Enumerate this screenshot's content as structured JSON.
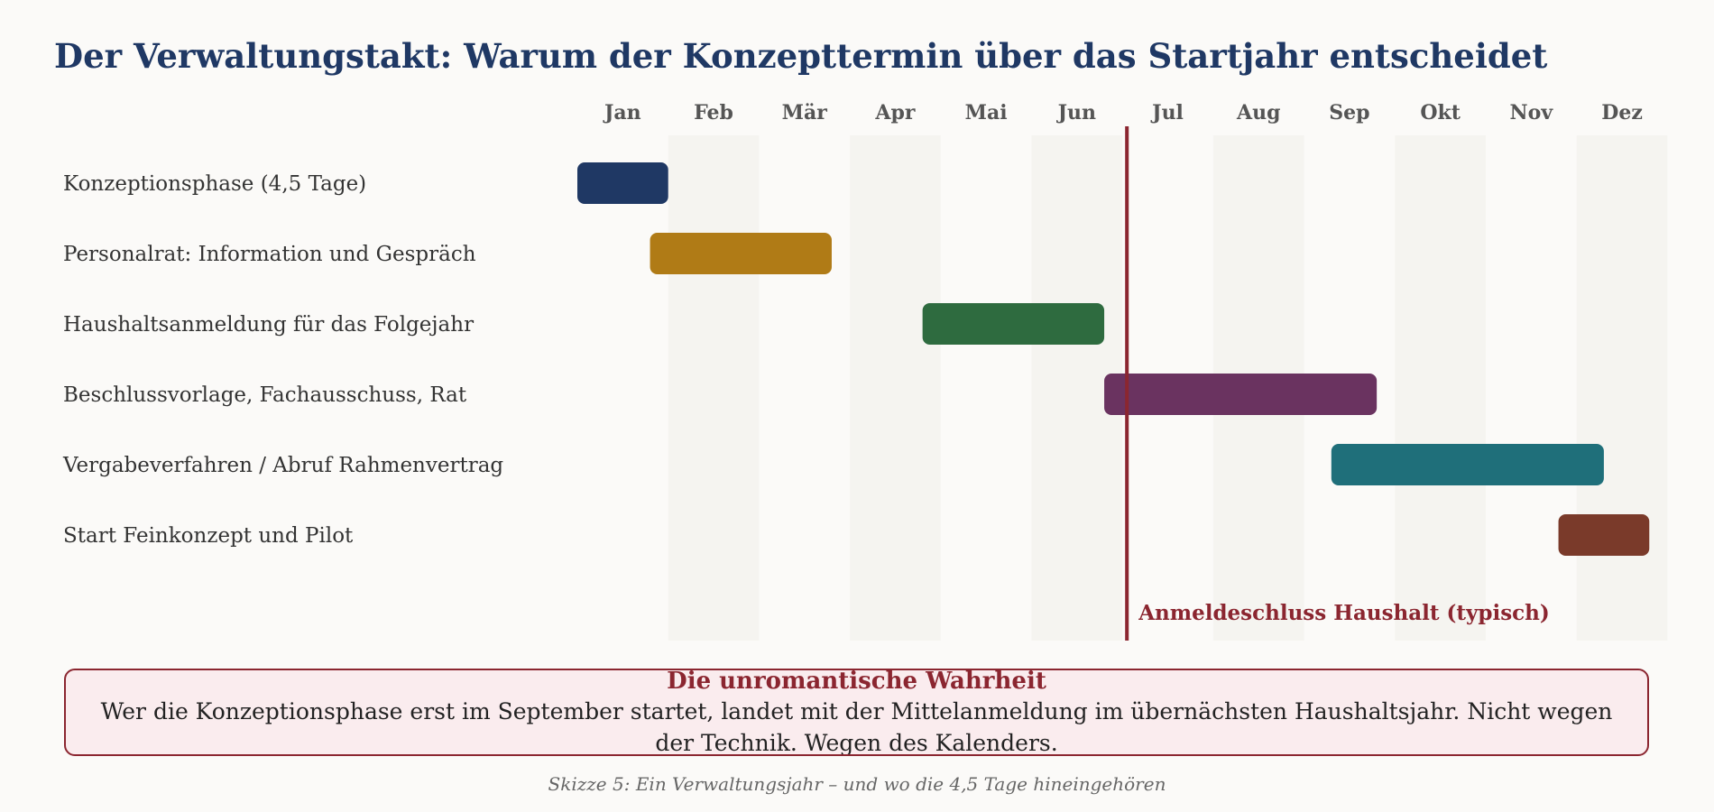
{
  "title": "Der Verwaltungstakt: Warum der Konzepttermin über das Startjahr entscheidet",
  "chart_data": {
    "type": "gantt",
    "title": "Der Verwaltungstakt: Warum der Konzepttermin über das Startjahr entscheidet",
    "months": [
      "Jan",
      "Feb",
      "Mär",
      "Apr",
      "Mai",
      "Jun",
      "Jul",
      "Aug",
      "Sep",
      "Okt",
      "Nov",
      "Dez"
    ],
    "x_unit": "month",
    "xlim": [
      0,
      12
    ],
    "shaded_months": [
      "Feb",
      "Apr",
      "Jun",
      "Aug",
      "Okt",
      "Dez"
    ],
    "tasks": [
      {
        "label": "Konzeptionsphase (4,5 Tage)",
        "start": 0.0,
        "end": 1.0,
        "color": "#1f3864"
      },
      {
        "label": "Personalrat: Information und Gespräch",
        "start": 0.8,
        "end": 2.8,
        "color": "#b07b16"
      },
      {
        "label": "Haushaltsanmeldung für das Folgejahr",
        "start": 3.8,
        "end": 5.8,
        "color": "#2e6b3f"
      },
      {
        "label": "Beschlussvorlage, Fachausschuss, Rat",
        "start": 5.8,
        "end": 8.8,
        "color": "#6a3360"
      },
      {
        "label": "Vergabeverfahren / Abruf Rahmenvertrag",
        "start": 8.3,
        "end": 11.3,
        "color": "#1f6f7a"
      },
      {
        "label": "Start Feinkonzept und Pilot",
        "start": 10.8,
        "end": 11.8,
        "color": "#7a3a2a"
      }
    ],
    "deadline": {
      "label": "Anmeldeschluss Haushalt (typisch)",
      "month": 6.0,
      "color": "#8b2630"
    }
  },
  "callout": {
    "title": "Die unromantische Wahrheit",
    "text": "Wer die Konzeptionsphase erst im September startet, landet mit der Mittelanmeldung im übernächsten Haushaltsjahr. Nicht wegen der Technik. Wegen des Kalenders."
  },
  "caption": "Skizze 5: Ein Verwaltungsjahr – und wo die 4,5 Tage hineingehören"
}
